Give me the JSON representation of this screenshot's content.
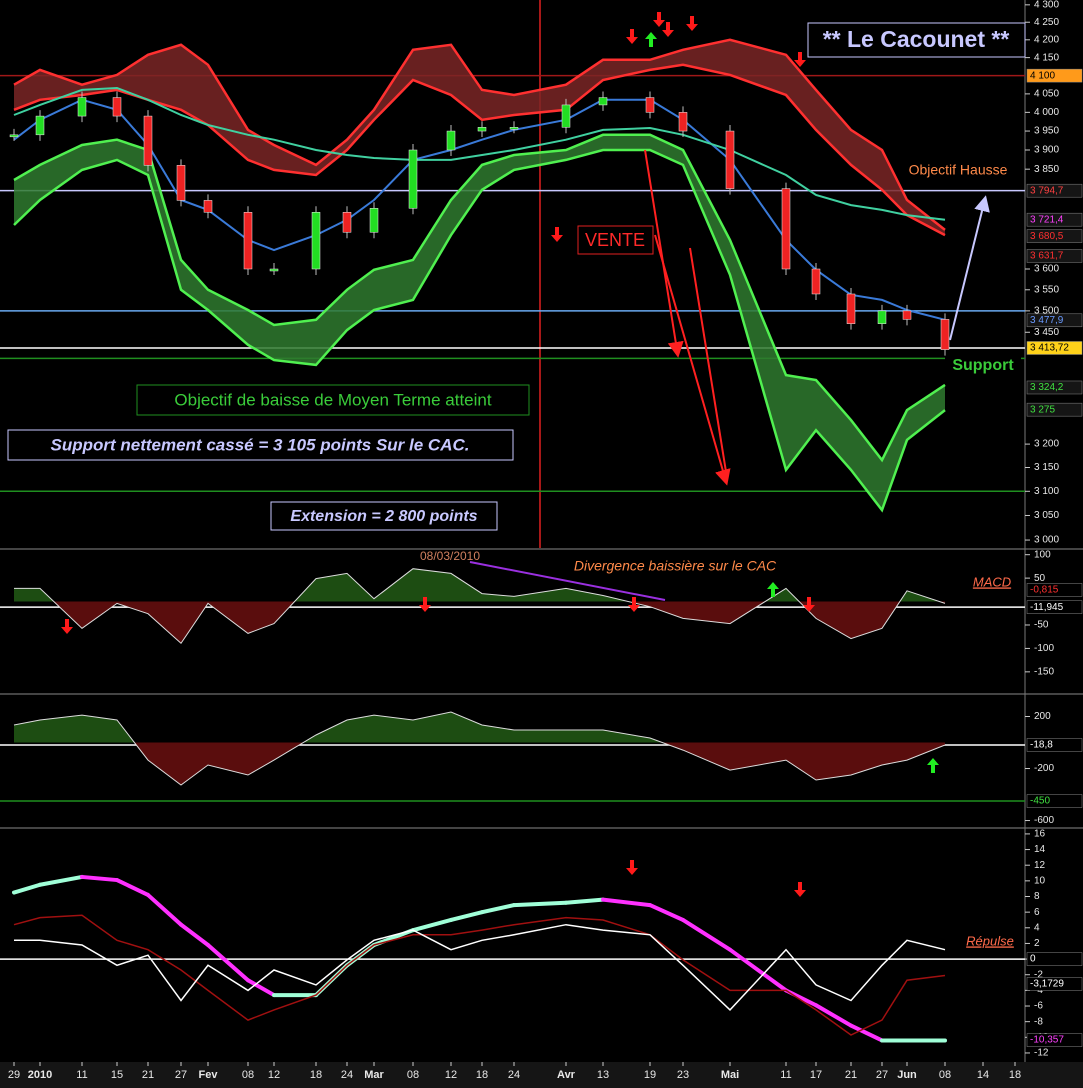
{
  "chart_data": [
    {
      "type": "price",
      "log": true,
      "ylim": [
        2984,
        4314
      ],
      "yticks": [
        {
          "value": 4300,
          "label": "4 300"
        },
        {
          "value": 4250,
          "label": "4 250"
        },
        {
          "value": 4200,
          "label": "4 200"
        },
        {
          "value": 4150,
          "label": "4 150"
        },
        {
          "value": 4050,
          "label": "4 050"
        },
        {
          "value": 4000,
          "label": "4 000"
        },
        {
          "value": 3950,
          "label": "3 950"
        },
        {
          "value": 3900,
          "label": "3 900"
        },
        {
          "value": 3850,
          "label": "3 850"
        },
        {
          "value": 3600,
          "label": "3 600"
        },
        {
          "value": 3550,
          "label": "3 550"
        },
        {
          "value": 3500,
          "label": "3 500"
        },
        {
          "value": 3450,
          "label": "3 450"
        },
        {
          "value": 3200,
          "label": "3 200"
        },
        {
          "value": 3150,
          "label": "3 150"
        },
        {
          "value": 3100,
          "label": "3 100"
        },
        {
          "value": 3050,
          "label": "3 050"
        },
        {
          "value": 3000,
          "label": "3 000"
        }
      ],
      "annotations": {
        "title": "** Le Cacounet **",
        "target_up": "Objectif Hausse",
        "sell": "VENTE",
        "support": "Support",
        "target_down": "Objectif de baisse de Moyen Terme atteint",
        "broken": "Support nettement cassé = 3 105 points Sur le CAC.",
        "extension": "Extension = 2 800 points"
      },
      "hlines": {
        "values": [
          4100,
          3794.7,
          3500,
          3413.72,
          3390,
          3100
        ],
        "colors": [
          "#a01818",
          "#c8c8ff",
          "#6aaaf0",
          "#ffffff",
          "#1f8f1f",
          "#1f8f1f"
        ]
      },
      "right_labels": [
        {
          "value": 4100,
          "label": "4 100",
          "color": "#000000",
          "bg": "#ff9a1a"
        },
        {
          "value": 3794.7,
          "label": "3 794,7",
          "color": "#ff4040",
          "bg": "#151515"
        },
        {
          "value": 3721.4,
          "label": "3 721,4",
          "color": "#ff40ff",
          "bg": "#151515"
        },
        {
          "value": 3680.5,
          "label": "3 680,5",
          "color": "#ff3030",
          "bg": "#151515"
        },
        {
          "value": 3631.7,
          "label": "3 631,7",
          "color": "#ff3030",
          "bg": "#151515"
        },
        {
          "value": 3477.9,
          "label": "3 477,9",
          "color": "#6a9aff",
          "bg": "#151515"
        },
        {
          "value": 3413.72,
          "label": "3 413,72",
          "color": "#000000",
          "bg": "#ffd21a"
        },
        {
          "value": 3324.2,
          "label": "3 324,2",
          "color": "#40e040",
          "bg": "#151515"
        },
        {
          "value": 3275,
          "label": "3 275",
          "color": "#40e040",
          "bg": "#151515"
        }
      ],
      "bands": [
        {
          "color": "#ff3030",
          "fill": "#7a2626",
          "upper": [
            4075,
            4116,
            4075,
            4102,
            4158,
            4186,
            4130,
            3953,
            3913,
            3861,
            3927,
            4007,
            4172,
            4186,
            4061,
            4047,
            4075,
            4144,
            4144,
            4172,
            4200,
            4158,
            4061,
            3953,
            3900,
            3771,
            3696,
            null,
            null
          ],
          "lower": [
            4007,
            4034,
            4047,
            4061,
            4034,
            4007,
            3966,
            3874,
            3848,
            3835,
            3900,
            3980,
            4088,
            4047,
            3980,
            3993,
            4007,
            4088,
            4116,
            4130,
            4102,
            4047,
            3953,
            3861,
            3797,
            3733,
            3683,
            null,
            null
          ]
        },
        {
          "color": "#50f050",
          "fill": "#2f7a2f",
          "upper": [
            3822,
            3861,
            3913,
            3927,
            3900,
            3622,
            3550,
            3502,
            3467,
            3479,
            3550,
            3598,
            3622,
            3771,
            3861,
            3887,
            3900,
            3940,
            3940,
            3900,
            3671,
            3352,
            3341,
            3252,
            3166,
            3274,
            3330,
            null,
            null
          ],
          "lower": [
            3708,
            3771,
            3848,
            3874,
            3835,
            3550,
            3502,
            3421,
            3386,
            3375,
            3455,
            3502,
            3526,
            3683,
            3797,
            3848,
            3874,
            3900,
            3900,
            3861,
            3586,
            3145,
            3230,
            3145,
            3061,
            3209,
            3274,
            null,
            null
          ]
        }
      ],
      "series": [
        {
          "color": "#3a7ad8",
          "values": [
            3927,
            3980,
            4034,
            4007,
            3913,
            3771,
            3746,
            3671,
            3646,
            3683,
            3721,
            3771,
            3874,
            3900,
            3927,
            3953,
            3980,
            4034,
            4034,
            3980,
            3874,
            3671,
            3598,
            3538,
            3526,
            3502,
            3479,
            null,
            null
          ]
        },
        {
          "color": "#40d0a0",
          "values": [
            3993,
            4020,
            4061,
            4066,
            4034,
            3993,
            3966,
            3940,
            3927,
            3900,
            3887,
            3879,
            3874,
            3874,
            3887,
            3900,
            3927,
            3953,
            3958,
            3940,
            3900,
            3835,
            3784,
            3758,
            3746,
            3733,
            3721,
            null,
            null
          ]
        }
      ],
      "price": {
        "values": [
          3940,
          3990,
          4040,
          3990,
          3860,
          3770,
          3740,
          3600,
          3600,
          3740,
          3690,
          3750,
          3900,
          3950,
          3960,
          3960,
          4020,
          4040,
          4000,
          3950,
          3800,
          3600,
          3540,
          3470,
          3500,
          3480,
          3410,
          null,
          null
        ],
        "up_color": "#22dd22",
        "down_color": "#ee2222"
      }
    },
    {
      "type": "area",
      "label": "MACD",
      "annotations": {
        "date": "08/03/2010",
        "note": "Divergence baissière sur le CAC"
      },
      "ylim": [
        -193,
        110
      ],
      "yticks": [
        100,
        50,
        -50,
        -100,
        -150
      ],
      "values": [
        28,
        28,
        -57,
        -4,
        -26,
        -89,
        -4,
        -68,
        -47,
        49,
        60,
        6,
        70,
        60,
        17,
        11,
        28,
        13,
        -11,
        -36,
        -47,
        28,
        -36,
        -79,
        -57,
        23,
        -4,
        null,
        null
      ],
      "pos_color": "#1d4d12",
      "neg_color": "#5a0d0d",
      "line_color": "#dddddd",
      "hlines": {
        "values": [
          -11.945
        ],
        "colors": [
          "#ffffff"
        ]
      },
      "right_labels": [
        {
          "value": -11.945,
          "label": "-11,945",
          "color": "#ffffff",
          "bg": "#000000"
        },
        {
          "value": -0.815,
          "label": "-0,815",
          "color": "#ff3030",
          "bg": "#000000"
        }
      ]
    },
    {
      "type": "area",
      "ylim": [
        -642,
        350
      ],
      "yticks": [
        200,
        -200,
        -600
      ],
      "values": [
        135,
        173,
        211,
        173,
        -135,
        -327,
        -173,
        -250,
        -135,
        58,
        173,
        211,
        173,
        235,
        135,
        96,
        96,
        96,
        35,
        -58,
        -212,
        -135,
        -288,
        -250,
        -173,
        -135,
        -19,
        null,
        null
      ],
      "pos_color": "#1d4d12",
      "neg_color": "#5a0d0d",
      "line_color": "#dddddd",
      "hlines": {
        "values": [
          -18.8,
          -450
        ],
        "colors": [
          "#ffffff",
          "#1f8f1f"
        ]
      },
      "right_labels": [
        {
          "value": -18.8,
          "label": "-18,8",
          "color": "#ffffff",
          "bg": "#000000"
        },
        {
          "value": -450,
          "label": "-450",
          "color": "#40e040",
          "bg": "#000000"
        }
      ]
    },
    {
      "type": "lines",
      "label": "Répulse",
      "ylim": [
        -12.9,
        16.5
      ],
      "yticks": [
        16,
        14,
        12,
        10,
        8,
        6,
        4,
        2,
        0,
        -2,
        -4,
        -6,
        -8,
        -10,
        -12
      ],
      "categories": [
        "29",
        "2010",
        "11",
        "15",
        "21",
        "27",
        "Fev",
        "08",
        "12",
        "18",
        "24",
        "Mar",
        "08",
        "12",
        "18",
        "24",
        "Avr",
        "13",
        "19",
        "23",
        "Mai",
        "11",
        "17",
        "21",
        "27",
        "Jun",
        "08",
        "14",
        "18"
      ],
      "series": [
        {
          "up_color": "#a0ffd8",
          "down_color": "#ff30ff",
          "values": [
            8.5,
            9.5,
            10.5,
            10.1,
            8.2,
            4.4,
            1.8,
            -2.7,
            -4.6,
            -4.6,
            -0.8,
            1.8,
            3.7,
            5,
            6,
            6.9,
            7.2,
            7.6,
            6.9,
            5,
            1.2,
            -4,
            -5.9,
            -8.5,
            -10.4,
            -10.4,
            -10.4,
            null,
            null
          ]
        },
        {
          "color": "#a01010",
          "values": [
            4.4,
            5.3,
            5.6,
            2.4,
            1.2,
            -1.4,
            -4,
            -7.8,
            -6.5,
            -4.6,
            -0.8,
            1.8,
            3.1,
            3.1,
            3.7,
            4.4,
            5.3,
            5,
            3.1,
            -0.1,
            -4,
            -4,
            -6.5,
            -9.7,
            -7.8,
            -2.7,
            -2.1,
            null,
            null
          ]
        },
        {
          "color": "#ffffff",
          "values": [
            2.4,
            2.4,
            1.8,
            -0.8,
            0.5,
            -5.3,
            -0.8,
            -4,
            -1.4,
            -3.3,
            -0.1,
            2.4,
            3.7,
            1.2,
            2.4,
            3.1,
            4.4,
            3.7,
            3.1,
            -0.8,
            -6.5,
            1.2,
            -3.3,
            -5.3,
            -0.8,
            2.4,
            1.2,
            null,
            null
          ]
        }
      ],
      "hlines": {
        "values": [
          0
        ],
        "colors": [
          "#ffffff"
        ]
      },
      "right_labels": [
        {
          "value": 0,
          "label": "0",
          "color": "#ffffff",
          "bg": "#000000"
        },
        {
          "value": -3.1729,
          "label": "-3,1729",
          "color": "#ffffff",
          "bg": "#000000"
        },
        {
          "value": -10.357,
          "label": "-10,357",
          "color": "#ff40ff",
          "bg": "#000000"
        }
      ]
    }
  ]
}
